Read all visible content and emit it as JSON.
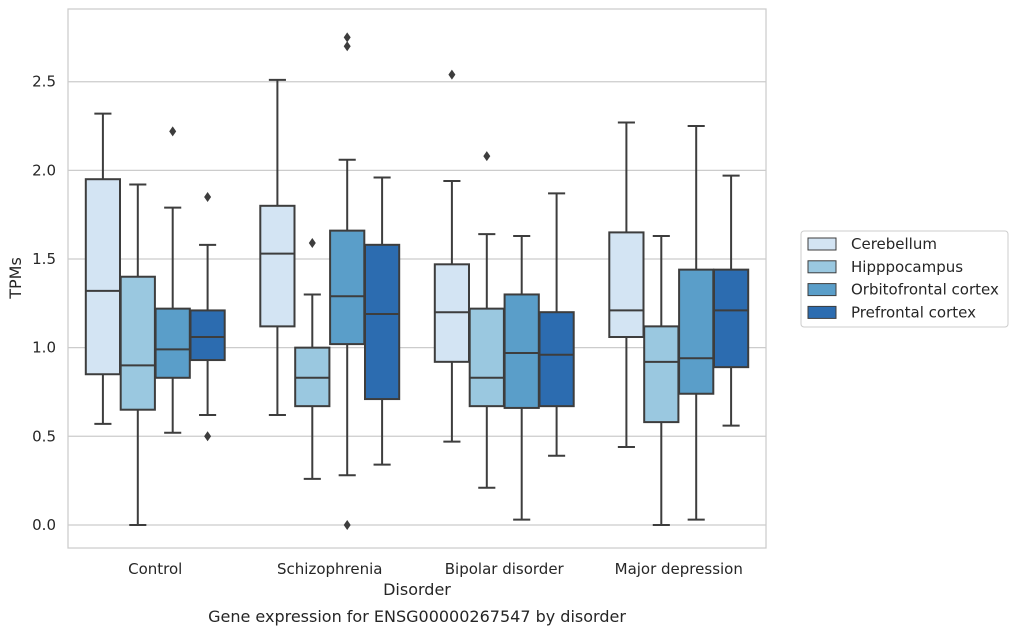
{
  "chart_data": {
    "type": "boxplot",
    "caption": "Gene expression for ENSG00000267547 by disorder",
    "xlabel": "Disorder",
    "ylabel": "TPMs",
    "ylim": [
      -0.13,
      2.91
    ],
    "yticks": [
      "0.0",
      "0.5",
      "1.0",
      "1.5",
      "2.0",
      "2.5"
    ],
    "grid": "horizontal",
    "legend_position": "right",
    "categories": [
      "Control",
      "Schizophrenia",
      "Bipolar disorder",
      "Major depression"
    ],
    "series": [
      {
        "name": "Cerebellum",
        "color": "#d3e4f3",
        "boxes": [
          {
            "whislo": 0.57,
            "q1": 0.85,
            "med": 1.32,
            "q3": 1.95,
            "whishi": 2.32,
            "fliers": []
          },
          {
            "whislo": 0.62,
            "q1": 1.12,
            "med": 1.53,
            "q3": 1.8,
            "whishi": 2.51,
            "fliers": []
          },
          {
            "whislo": 0.47,
            "q1": 0.92,
            "med": 1.2,
            "q3": 1.47,
            "whishi": 1.94,
            "fliers": [
              2.54
            ]
          },
          {
            "whislo": 0.44,
            "q1": 1.06,
            "med": 1.21,
            "q3": 1.65,
            "whishi": 2.27,
            "fliers": []
          }
        ]
      },
      {
        "name": "Hipppocampus",
        "color": "#9ac8e0",
        "boxes": [
          {
            "whislo": 0.0,
            "q1": 0.65,
            "med": 0.9,
            "q3": 1.4,
            "whishi": 1.92,
            "fliers": []
          },
          {
            "whislo": 0.26,
            "q1": 0.67,
            "med": 0.83,
            "q3": 1.0,
            "whishi": 1.3,
            "fliers": [
              1.59
            ]
          },
          {
            "whislo": 0.21,
            "q1": 0.67,
            "med": 0.83,
            "q3": 1.22,
            "whishi": 1.64,
            "fliers": [
              2.08
            ]
          },
          {
            "whislo": 0.0,
            "q1": 0.58,
            "med": 0.92,
            "q3": 1.12,
            "whishi": 1.63,
            "fliers": []
          }
        ]
      },
      {
        "name": "Orbitofrontal cortex",
        "color": "#5a9ec9",
        "boxes": [
          {
            "whislo": 0.52,
            "q1": 0.83,
            "med": 0.99,
            "q3": 1.22,
            "whishi": 1.79,
            "fliers": [
              2.22
            ]
          },
          {
            "whislo": 0.28,
            "q1": 1.02,
            "med": 1.29,
            "q3": 1.66,
            "whishi": 2.06,
            "fliers": [
              2.7,
              2.75,
              0.0
            ]
          },
          {
            "whislo": 0.03,
            "q1": 0.66,
            "med": 0.97,
            "q3": 1.3,
            "whishi": 1.63,
            "fliers": []
          },
          {
            "whislo": 0.03,
            "q1": 0.74,
            "med": 0.94,
            "q3": 1.44,
            "whishi": 2.25,
            "fliers": []
          }
        ]
      },
      {
        "name": "Prefrontal cortex",
        "color": "#2c6cb0",
        "boxes": [
          {
            "whislo": 0.62,
            "q1": 0.93,
            "med": 1.06,
            "q3": 1.21,
            "whishi": 1.58,
            "fliers": [
              1.85,
              0.5
            ]
          },
          {
            "whislo": 0.34,
            "q1": 0.71,
            "med": 1.19,
            "q3": 1.58,
            "whishi": 1.96,
            "fliers": []
          },
          {
            "whislo": 0.39,
            "q1": 0.67,
            "med": 0.96,
            "q3": 1.2,
            "whishi": 1.87,
            "fliers": []
          },
          {
            "whislo": 0.56,
            "q1": 0.89,
            "med": 1.21,
            "q3": 1.44,
            "whishi": 1.97,
            "fliers": []
          }
        ]
      }
    ]
  }
}
